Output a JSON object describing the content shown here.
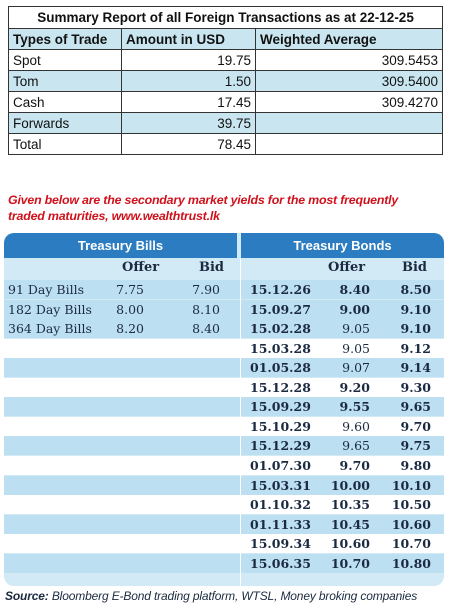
{
  "summary": {
    "title": "Summary Report of all Foreign Transactions as at 22-12-25",
    "headers": [
      "Types of Trade",
      "Amount in USD",
      "Weighted Average"
    ],
    "rows": [
      {
        "type": "Spot",
        "amount": "19.75",
        "wavg": "309.5453"
      },
      {
        "type": "Tom",
        "amount": "1.50",
        "wavg": "309.5400"
      },
      {
        "type": "Cash",
        "amount": "17.45",
        "wavg": "309.4270"
      },
      {
        "type": "Forwards",
        "amount": "39.75",
        "wavg": ""
      },
      {
        "type": "Total",
        "amount": "78.45",
        "wavg": ""
      }
    ]
  },
  "note": {
    "line1": "Given below are the secondary market yields for the most frequently",
    "line2": "traded maturities, www.wealthtrust.lk"
  },
  "bills": {
    "title": "Treasury Bills",
    "offer_label": "Offer",
    "bid_label": "Bid",
    "rows": [
      {
        "name": "91 Day Bills",
        "offer": "7.75",
        "bid": "7.90"
      },
      {
        "name": "182 Day Bills",
        "offer": "8.00",
        "bid": "8.10"
      },
      {
        "name": "364 Day Bills",
        "offer": "8.20",
        "bid": "8.40"
      }
    ]
  },
  "bonds": {
    "title": "Treasury Bonds",
    "offer_label": "Offer",
    "bid_label": "Bid",
    "rows": [
      {
        "date": "15.12.26",
        "offer": "8.40",
        "bid": "8.50",
        "bold": true
      },
      {
        "date": "15.09.27",
        "offer": "9.00",
        "bid": "9.10",
        "bold": true
      },
      {
        "date": "15.02.28",
        "offer": "9.05",
        "bid": "9.10",
        "bold": false
      },
      {
        "date": "15.03.28",
        "offer": "9.05",
        "bid": "9.12",
        "bold": false
      },
      {
        "date": "01.05.28",
        "offer": "9.07",
        "bid": "9.14",
        "bold": false
      },
      {
        "date": "15.12.28",
        "offer": "9.20",
        "bid": "9.30",
        "bold": true
      },
      {
        "date": "15.09.29",
        "offer": "9.55",
        "bid": "9.65",
        "bold": true
      },
      {
        "date": "15.10.29",
        "offer": "9.60",
        "bid": "9.70",
        "bold": false
      },
      {
        "date": "15.12.29",
        "offer": "9.65",
        "bid": "9.75",
        "bold": false
      },
      {
        "date": "01.07.30",
        "offer": "9.70",
        "bid": "9.80",
        "bold": true
      },
      {
        "date": "15.03.31",
        "offer": "10.00",
        "bid": "10.10",
        "bold": true
      },
      {
        "date": "01.10.32",
        "offer": "10.35",
        "bid": "10.50",
        "bold": true
      },
      {
        "date": "01.11.33",
        "offer": "10.45",
        "bid": "10.60",
        "bold": true
      },
      {
        "date": "15.09.34",
        "offer": "10.60",
        "bid": "10.70",
        "bold": true
      },
      {
        "date": "15.06.35",
        "offer": "10.70",
        "bid": "10.80",
        "bold": true
      }
    ]
  },
  "source": {
    "label": "Source:",
    "text": " Bloomberg E-Bond trading platform, WTSL, Money broking companies"
  },
  "colors": {
    "header_blue": "#2c7cc1",
    "panel_light": "#d2e9f6",
    "row_alt": "#bcdff2",
    "summary_shade": "#c9e6f0",
    "note_red": "#d0111b"
  }
}
